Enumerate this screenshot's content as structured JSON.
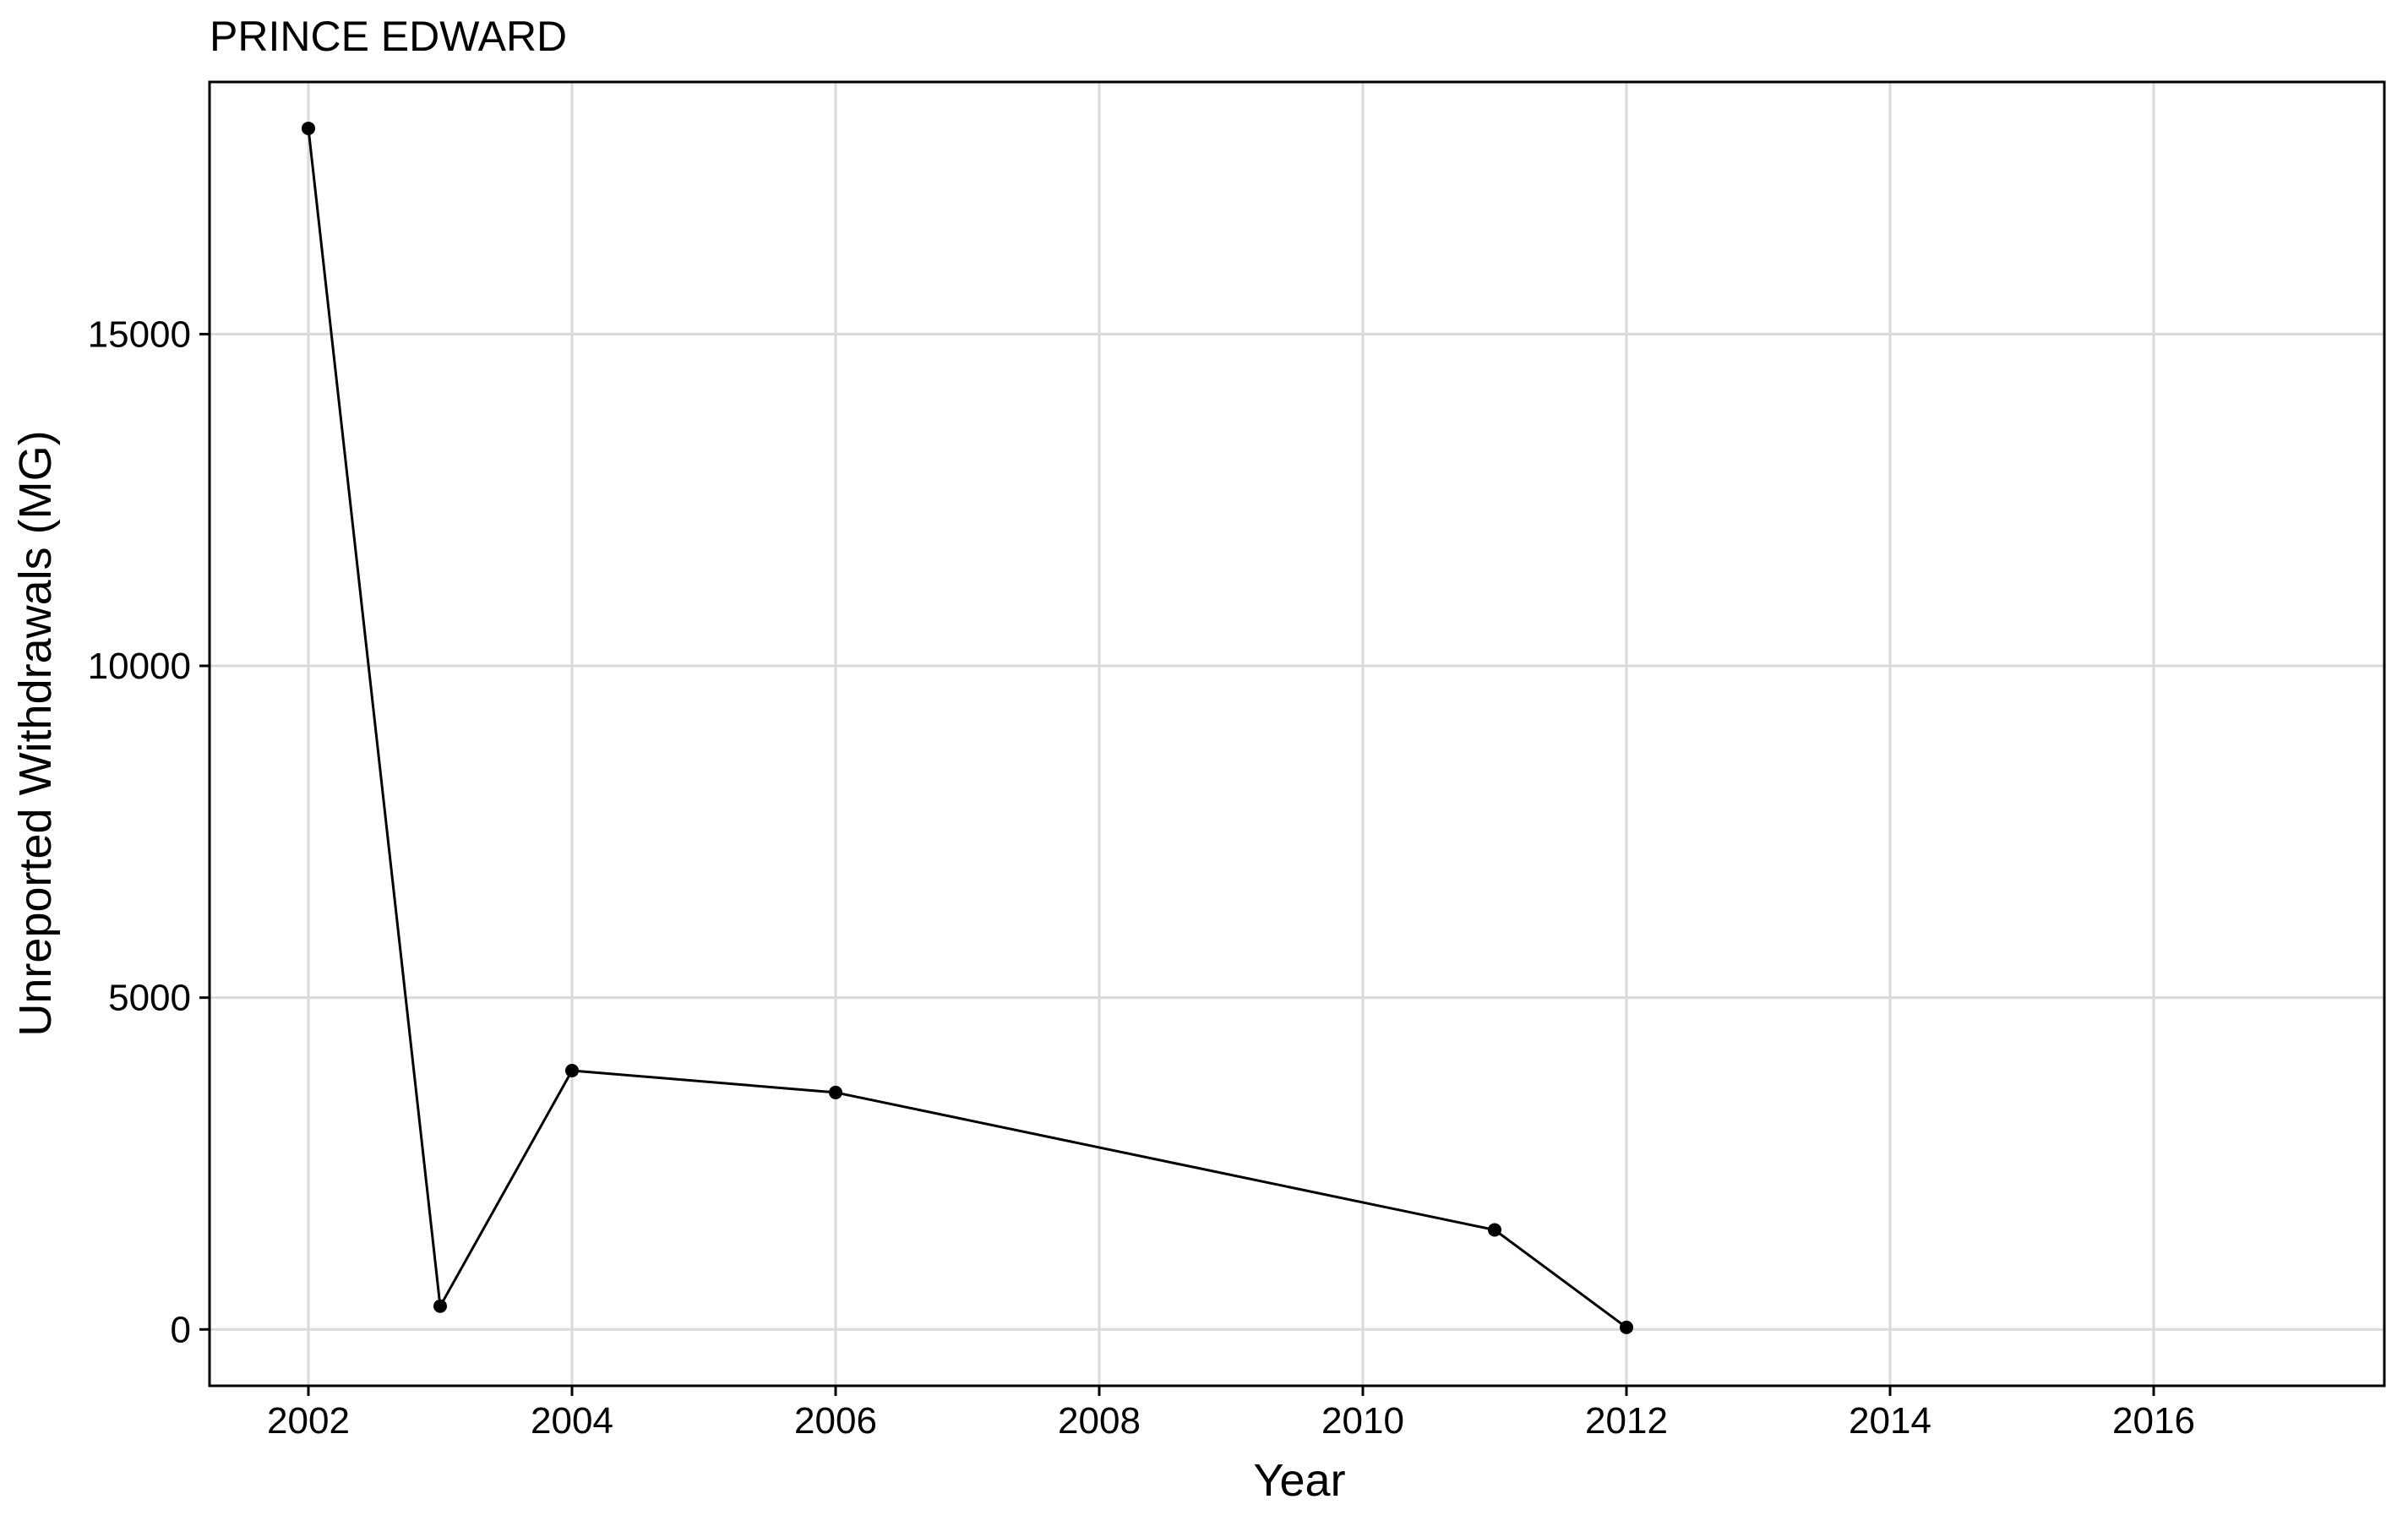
{
  "chart_data": {
    "type": "line",
    "title": "PRINCE EDWARD",
    "xlabel": "Year",
    "ylabel": "Unreported Withdrawals (MG)",
    "xlim": [
      2001.25,
      2017.75
    ],
    "ylim": [
      -850,
      18800
    ],
    "x_ticks": [
      2002,
      2004,
      2006,
      2008,
      2010,
      2012,
      2014,
      2016
    ],
    "y_ticks": [
      0,
      5000,
      10000,
      15000
    ],
    "grid": true,
    "legend": "none",
    "series": [
      {
        "x": [
          2002,
          2003,
          2004,
          2006,
          2011,
          2012
        ],
        "y": [
          18100,
          350,
          3900,
          3570,
          1500,
          30
        ]
      }
    ]
  }
}
